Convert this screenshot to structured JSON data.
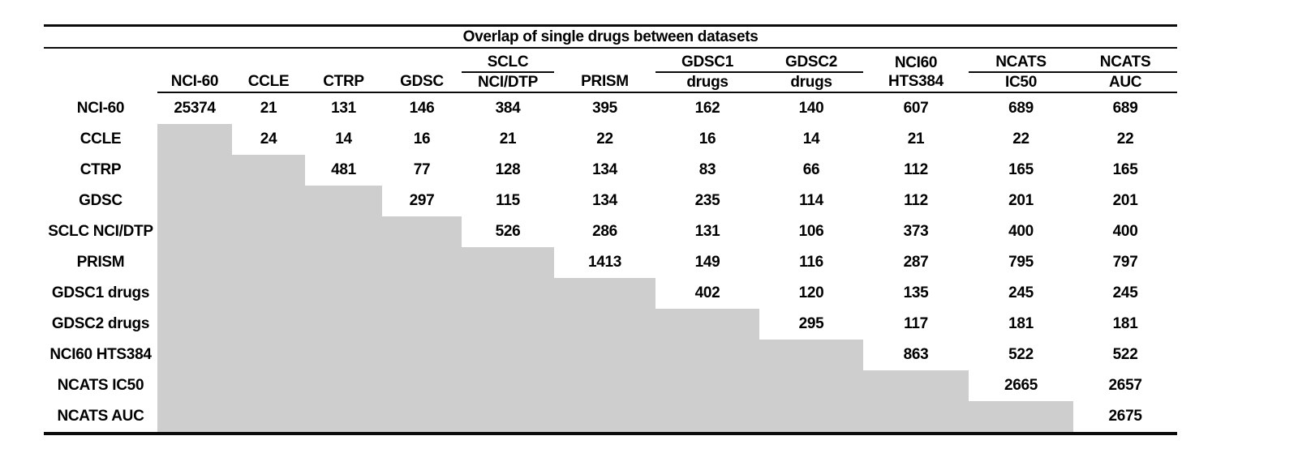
{
  "title": "Overlap of single drugs between datasets",
  "table": {
    "columns": [
      {
        "group": "",
        "name": "NCI-60",
        "group_underline": false
      },
      {
        "group": "",
        "name": "CCLE",
        "group_underline": false
      },
      {
        "group": "",
        "name": "CTRP",
        "group_underline": false
      },
      {
        "group": "",
        "name": "GDSC",
        "group_underline": false
      },
      {
        "group": "SCLC",
        "name": "NCI/DTP",
        "group_underline": true
      },
      {
        "group": "",
        "name": "PRISM",
        "group_underline": false
      },
      {
        "group": "GDSC1",
        "name": "drugs",
        "group_underline": true
      },
      {
        "group": "GDSC2",
        "name": "drugs",
        "group_underline": true
      },
      {
        "group": "NCI60",
        "name": "HTS384",
        "group_underline": false
      },
      {
        "group": "NCATS",
        "name": "IC50",
        "group_underline": true
      },
      {
        "group": "NCATS",
        "name": "AUC",
        "group_underline": true
      }
    ],
    "rows": [
      {
        "label": "NCI-60",
        "values": [
          25374,
          21,
          131,
          146,
          384,
          395,
          162,
          140,
          607,
          689,
          689
        ]
      },
      {
        "label": "CCLE",
        "values": [
          null,
          24,
          14,
          16,
          21,
          22,
          16,
          14,
          21,
          22,
          22
        ]
      },
      {
        "label": "CTRP",
        "values": [
          null,
          null,
          481,
          77,
          128,
          134,
          83,
          66,
          112,
          165,
          165
        ]
      },
      {
        "label": "GDSC",
        "values": [
          null,
          null,
          null,
          297,
          115,
          134,
          235,
          114,
          112,
          201,
          201
        ]
      },
      {
        "label": "SCLC NCI/DTP",
        "values": [
          null,
          null,
          null,
          null,
          526,
          286,
          131,
          106,
          373,
          400,
          400
        ]
      },
      {
        "label": "PRISM",
        "values": [
          null,
          null,
          null,
          null,
          null,
          1413,
          149,
          116,
          287,
          795,
          797
        ]
      },
      {
        "label": "GDSC1 drugs",
        "values": [
          null,
          null,
          null,
          null,
          null,
          null,
          402,
          120,
          135,
          245,
          245
        ]
      },
      {
        "label": "GDSC2 drugs",
        "values": [
          null,
          null,
          null,
          null,
          null,
          null,
          null,
          295,
          117,
          181,
          181
        ]
      },
      {
        "label": "NCI60 HTS384",
        "values": [
          null,
          null,
          null,
          null,
          null,
          null,
          null,
          null,
          863,
          522,
          522
        ]
      },
      {
        "label": "NCATS IC50",
        "values": [
          null,
          null,
          null,
          null,
          null,
          null,
          null,
          null,
          null,
          2665,
          2657
        ]
      },
      {
        "label": "NCATS AUC",
        "values": [
          null,
          null,
          null,
          null,
          null,
          null,
          null,
          null,
          null,
          null,
          2675
        ]
      }
    ],
    "lower_triangle_fill": "#cecece",
    "rule_color": "#0a0a0a"
  }
}
